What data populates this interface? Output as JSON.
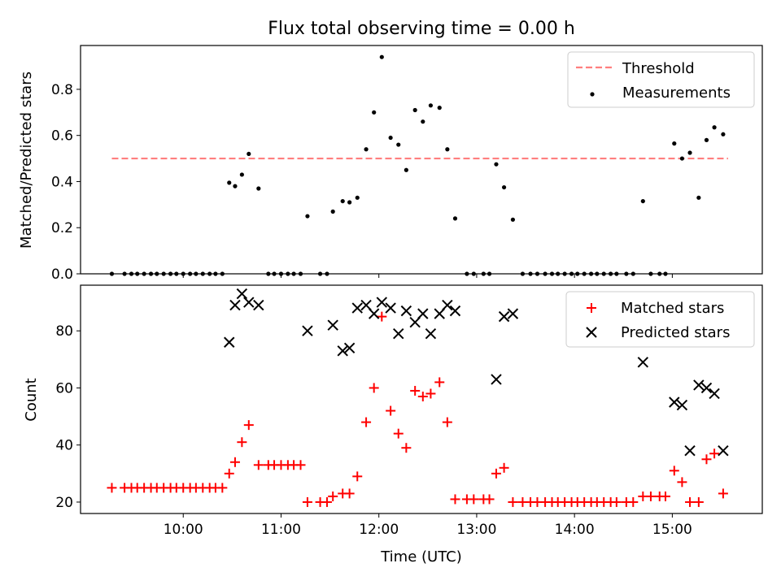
{
  "title": "Flux total observing time = 0.00 h",
  "xlabel": "Time (UTC)",
  "x_tick_labels": [
    "10:00",
    "11:00",
    "12:00",
    "13:00",
    "14:00",
    "15:00"
  ],
  "colors": {
    "threshold": "#ff7f7f",
    "measurements": "#000000",
    "matched": "#ff0000",
    "predicted": "#000000"
  },
  "chart_data": [
    {
      "type": "scatter",
      "ylabel": "Matched/Predicted stars",
      "xlim_hours": [
        8.95,
        15.92
      ],
      "ylim": [
        0,
        0.99
      ],
      "y_ticks": [
        "0.0",
        "0.2",
        "0.4",
        "0.6",
        "0.8"
      ],
      "legend_position": "top-right",
      "threshold": {
        "name": "Threshold",
        "y": 0.5,
        "x_range": [
          9.27,
          15.57
        ]
      },
      "series": [
        {
          "name": "Measurements",
          "points": [
            [
              9.27,
              0.0
            ],
            [
              9.4,
              0.0
            ],
            [
              9.47,
              0.0
            ],
            [
              9.53,
              0.0
            ],
            [
              9.6,
              0.0
            ],
            [
              9.67,
              0.0
            ],
            [
              9.73,
              0.0
            ],
            [
              9.8,
              0.0
            ],
            [
              9.87,
              0.0
            ],
            [
              9.93,
              0.0
            ],
            [
              10.0,
              0.0
            ],
            [
              10.07,
              0.0
            ],
            [
              10.13,
              0.0
            ],
            [
              10.2,
              0.0
            ],
            [
              10.27,
              0.0
            ],
            [
              10.33,
              0.0
            ],
            [
              10.4,
              0.0
            ],
            [
              10.47,
              0.395
            ],
            [
              10.53,
              0.38
            ],
            [
              10.6,
              0.43
            ],
            [
              10.67,
              0.52
            ],
            [
              10.77,
              0.37
            ],
            [
              10.87,
              0.0
            ],
            [
              10.93,
              0.0
            ],
            [
              11.0,
              0.0
            ],
            [
              11.07,
              0.0
            ],
            [
              11.13,
              0.0
            ],
            [
              11.2,
              0.0
            ],
            [
              11.27,
              0.25
            ],
            [
              11.4,
              0.0
            ],
            [
              11.47,
              0.0
            ],
            [
              11.53,
              0.27
            ],
            [
              11.63,
              0.315
            ],
            [
              11.7,
              0.31
            ],
            [
              11.78,
              0.33
            ],
            [
              11.87,
              0.54
            ],
            [
              11.95,
              0.7
            ],
            [
              12.03,
              0.94
            ],
            [
              12.12,
              0.59
            ],
            [
              12.2,
              0.56
            ],
            [
              12.28,
              0.45
            ],
            [
              12.37,
              0.71
            ],
            [
              12.45,
              0.66
            ],
            [
              12.53,
              0.73
            ],
            [
              12.62,
              0.72
            ],
            [
              12.7,
              0.54
            ],
            [
              12.78,
              0.24
            ],
            [
              12.9,
              0.0
            ],
            [
              12.97,
              0.0
            ],
            [
              13.07,
              0.0
            ],
            [
              13.13,
              0.0
            ],
            [
              13.2,
              0.475
            ],
            [
              13.28,
              0.375
            ],
            [
              13.37,
              0.235
            ],
            [
              13.47,
              0.0
            ],
            [
              13.55,
              0.0
            ],
            [
              13.62,
              0.0
            ],
            [
              13.7,
              0.0
            ],
            [
              13.77,
              0.0
            ],
            [
              13.83,
              0.0
            ],
            [
              13.9,
              0.0
            ],
            [
              13.97,
              0.0
            ],
            [
              14.03,
              0.0
            ],
            [
              14.1,
              0.0
            ],
            [
              14.17,
              0.0
            ],
            [
              14.23,
              0.0
            ],
            [
              14.3,
              0.0
            ],
            [
              14.37,
              0.0
            ],
            [
              14.43,
              0.0
            ],
            [
              14.53,
              0.0
            ],
            [
              14.6,
              0.0
            ],
            [
              14.7,
              0.315
            ],
            [
              14.78,
              0.0
            ],
            [
              14.87,
              0.0
            ],
            [
              14.93,
              0.0
            ],
            [
              15.02,
              0.565
            ],
            [
              15.1,
              0.5
            ],
            [
              15.18,
              0.525
            ],
            [
              15.27,
              0.33
            ],
            [
              15.35,
              0.58
            ],
            [
              15.43,
              0.635
            ],
            [
              15.52,
              0.605
            ]
          ]
        }
      ]
    },
    {
      "type": "scatter",
      "ylabel": "Count",
      "xlim_hours": [
        8.95,
        15.92
      ],
      "ylim": [
        16,
        96
      ],
      "y_ticks": [
        "20",
        "40",
        "60",
        "80"
      ],
      "legend_position": "top-right",
      "series": [
        {
          "name": "Matched stars",
          "marker": "plus",
          "points": [
            [
              9.27,
              25
            ],
            [
              9.4,
              25
            ],
            [
              9.47,
              25
            ],
            [
              9.53,
              25
            ],
            [
              9.6,
              25
            ],
            [
              9.67,
              25
            ],
            [
              9.73,
              25
            ],
            [
              9.8,
              25
            ],
            [
              9.87,
              25
            ],
            [
              9.93,
              25
            ],
            [
              10.0,
              25
            ],
            [
              10.07,
              25
            ],
            [
              10.13,
              25
            ],
            [
              10.2,
              25
            ],
            [
              10.27,
              25
            ],
            [
              10.33,
              25
            ],
            [
              10.4,
              25
            ],
            [
              10.47,
              30
            ],
            [
              10.53,
              34
            ],
            [
              10.6,
              41
            ],
            [
              10.67,
              47
            ],
            [
              10.77,
              33
            ],
            [
              10.87,
              33
            ],
            [
              10.93,
              33
            ],
            [
              11.0,
              33
            ],
            [
              11.07,
              33
            ],
            [
              11.13,
              33
            ],
            [
              11.2,
              33
            ],
            [
              11.27,
              20
            ],
            [
              11.4,
              20
            ],
            [
              11.47,
              20
            ],
            [
              11.53,
              22
            ],
            [
              11.63,
              23
            ],
            [
              11.7,
              23
            ],
            [
              11.78,
              29
            ],
            [
              11.87,
              48
            ],
            [
              11.95,
              60
            ],
            [
              12.03,
              85
            ],
            [
              12.12,
              52
            ],
            [
              12.2,
              44
            ],
            [
              12.28,
              39
            ],
            [
              12.37,
              59
            ],
            [
              12.45,
              57
            ],
            [
              12.53,
              58
            ],
            [
              12.62,
              62
            ],
            [
              12.7,
              48
            ],
            [
              12.78,
              21
            ],
            [
              12.9,
              21
            ],
            [
              12.97,
              21
            ],
            [
              13.07,
              21
            ],
            [
              13.13,
              21
            ],
            [
              13.2,
              30
            ],
            [
              13.28,
              32
            ],
            [
              13.37,
              20
            ],
            [
              13.47,
              20
            ],
            [
              13.55,
              20
            ],
            [
              13.62,
              20
            ],
            [
              13.7,
              20
            ],
            [
              13.77,
              20
            ],
            [
              13.83,
              20
            ],
            [
              13.9,
              20
            ],
            [
              13.97,
              20
            ],
            [
              14.03,
              20
            ],
            [
              14.1,
              20
            ],
            [
              14.17,
              20
            ],
            [
              14.23,
              20
            ],
            [
              14.3,
              20
            ],
            [
              14.37,
              20
            ],
            [
              14.43,
              20
            ],
            [
              14.53,
              20
            ],
            [
              14.6,
              20
            ],
            [
              14.7,
              22
            ],
            [
              14.78,
              22
            ],
            [
              14.87,
              22
            ],
            [
              14.93,
              22
            ],
            [
              15.02,
              31
            ],
            [
              15.1,
              27
            ],
            [
              15.18,
              20
            ],
            [
              15.27,
              20
            ],
            [
              15.35,
              35
            ],
            [
              15.43,
              37
            ],
            [
              15.52,
              23
            ]
          ]
        },
        {
          "name": "Predicted stars",
          "marker": "x",
          "points": [
            [
              10.47,
              76
            ],
            [
              10.53,
              89
            ],
            [
              10.6,
              93
            ],
            [
              10.67,
              90
            ],
            [
              10.77,
              89
            ],
            [
              11.27,
              80
            ],
            [
              11.53,
              82
            ],
            [
              11.63,
              73
            ],
            [
              11.7,
              74
            ],
            [
              11.78,
              88
            ],
            [
              11.87,
              89
            ],
            [
              11.95,
              86
            ],
            [
              12.03,
              90
            ],
            [
              12.12,
              88
            ],
            [
              12.2,
              79
            ],
            [
              12.28,
              87
            ],
            [
              12.37,
              83
            ],
            [
              12.45,
              86
            ],
            [
              12.53,
              79
            ],
            [
              12.62,
              86
            ],
            [
              12.7,
              89
            ],
            [
              12.78,
              87
            ],
            [
              13.2,
              63
            ],
            [
              13.28,
              85
            ],
            [
              13.37,
              86
            ],
            [
              14.7,
              69
            ],
            [
              15.02,
              55
            ],
            [
              15.1,
              54
            ],
            [
              15.18,
              38
            ],
            [
              15.27,
              61
            ],
            [
              15.35,
              60
            ],
            [
              15.43,
              58
            ],
            [
              15.52,
              38
            ]
          ]
        }
      ]
    }
  ]
}
